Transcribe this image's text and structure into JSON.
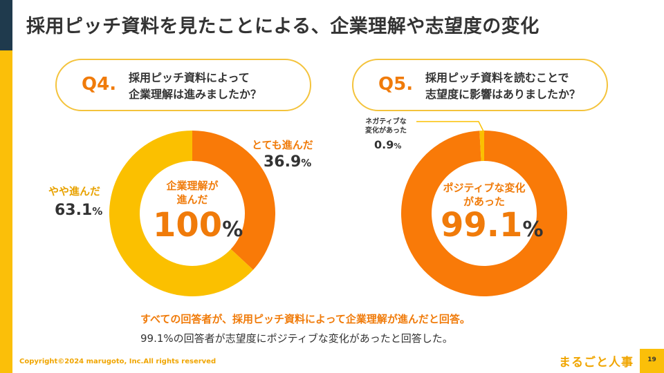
{
  "title": "採用ピッチ資料を見たことによる、企業理解や志望度の変化",
  "q4": {
    "num": "Q4.",
    "line1": "採用ピッチ資料によって",
    "line2": "企業理解は進みましたか？"
  },
  "q5": {
    "num": "Q5.",
    "line1": "採用ピッチ資料を読むことで",
    "line2": "志望度に影響はありましたか？"
  },
  "chart_data": [
    {
      "type": "pie",
      "center_label_line1": "企業理解が",
      "center_label_line2": "進んだ",
      "center_value": "100",
      "center_unit": "%",
      "slices": [
        {
          "label": "とても進んだ",
          "value": 36.9,
          "value_text": "36.9",
          "unit": "%",
          "color": "#f97a08"
        },
        {
          "label": "やや進んだ",
          "value": 63.1,
          "value_text": "63.1",
          "unit": "%",
          "color": "#fbc000"
        }
      ]
    },
    {
      "type": "pie",
      "center_label_line1": "ポジティブな変化",
      "center_label_line2": "があった",
      "center_value": "99.1",
      "center_unit": "%",
      "slices": [
        {
          "label": "ポジティブな変化があった",
          "value": 99.1,
          "color": "#f97a08"
        },
        {
          "label_line1": "ネガティブな",
          "label_line2": "変化があった",
          "value": 0.9,
          "value_text": "0.9",
          "unit": "%",
          "color": "#fbc000"
        }
      ]
    }
  ],
  "summary": {
    "line1": "すべての回答者が、採用ピッチ資料によって企業理解が進んだと回答。",
    "line2": "99.1%の回答者が志望度にポジティブな変化があったと回答した。"
  },
  "footer": {
    "copyright": "Copyright©2024 marugoto, Inc.All rights reserved",
    "logo": "まるごと人事",
    "page": "19"
  },
  "colors": {
    "accent_orange": "#f07b0a",
    "accent_yellow": "#fbbf09",
    "dark": "#1f3a4d"
  }
}
